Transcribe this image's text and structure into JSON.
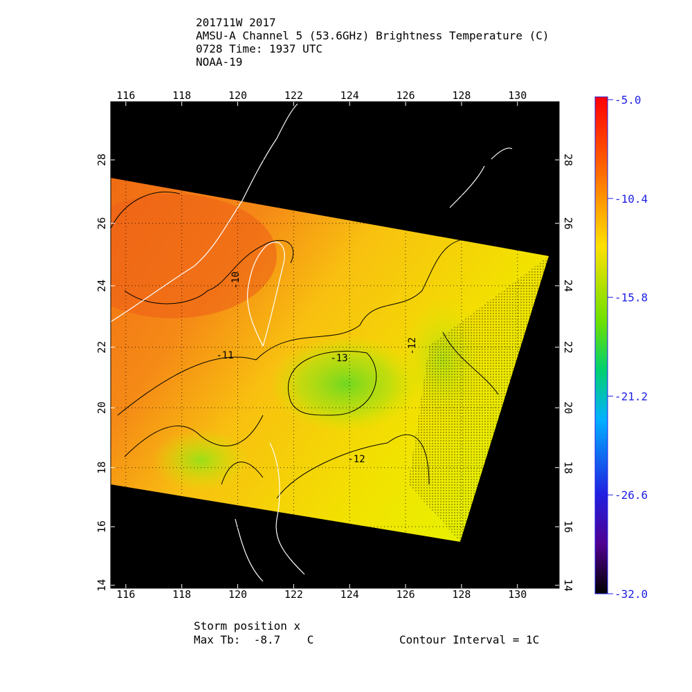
{
  "header": {
    "lines": [
      "201711W 2017",
      "AMSU-A Channel 5 (53.6GHz) Brightness Temperature (C)",
      "0728 Time: 1937 UTC",
      "NOAA-19"
    ]
  },
  "map": {
    "xlim": [
      115.46,
      131.49
    ],
    "ylim": [
      13.9,
      29.8
    ],
    "xticks": [
      116,
      118,
      120,
      122,
      124,
      126,
      128,
      130
    ],
    "yticks": [
      14,
      16,
      18,
      20,
      22,
      24,
      26,
      28
    ],
    "contour_labels": [
      "-10",
      "-11",
      "-12",
      "-13",
      "-12"
    ]
  },
  "colorbar": {
    "ylim": [
      -32,
      -5
    ],
    "yticks": [
      {
        "value": -5,
        "label": "-5.0"
      },
      -10.4,
      -15.8,
      -21.2,
      -26.6,
      {
        "value": -32,
        "label": "-32.0"
      }
    ]
  },
  "footer": {
    "storm": "Storm position x",
    "max_tb": "Max Tb:  -8.7    C",
    "contour_interval": "Contour Interval = 1C"
  }
}
